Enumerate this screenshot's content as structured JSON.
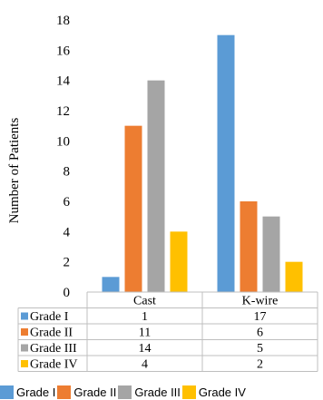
{
  "chart_data": {
    "type": "bar",
    "categories": [
      "Cast",
      "K-wire"
    ],
    "series": [
      {
        "name": "Grade I",
        "values": [
          1,
          17
        ],
        "color": "#5b9bd5"
      },
      {
        "name": "Grade II",
        "values": [
          11,
          6
        ],
        "color": "#ed7d31"
      },
      {
        "name": "Grade III",
        "values": [
          14,
          5
        ],
        "color": "#a5a5a5"
      },
      {
        "name": "Grade IV",
        "values": [
          4,
          2
        ],
        "color": "#ffc000"
      }
    ],
    "ylabel": "Number of Patients",
    "xlabel": "",
    "ylim": [
      0,
      18
    ],
    "yticks": [
      "0",
      "2",
      "4",
      "6",
      "8",
      "10",
      "12",
      "14",
      "16",
      "18"
    ],
    "grid": false,
    "data_table": [
      [
        "1",
        "17"
      ],
      [
        "11",
        "6"
      ],
      [
        "14",
        "5"
      ],
      [
        "4",
        "2"
      ]
    ],
    "legend_position": "bottom"
  }
}
